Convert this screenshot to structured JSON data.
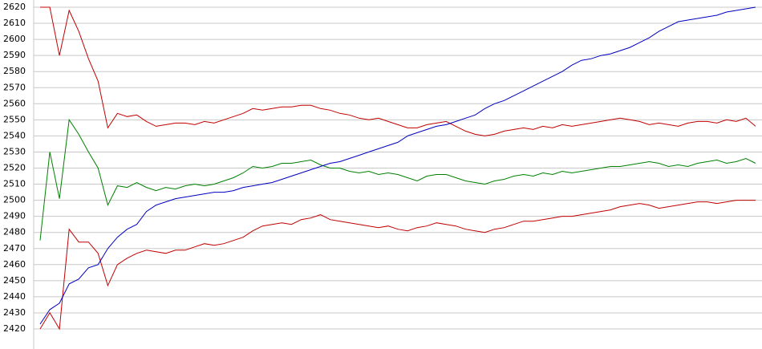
{
  "chart_data": {
    "type": "line",
    "categories": [
      null,
      null,
      null,
      null,
      null,
      null,
      null,
      null,
      null,
      null,
      null,
      null,
      null,
      null,
      null,
      null,
      null,
      null,
      null,
      null,
      null,
      null,
      null,
      null,
      null,
      null,
      null,
      null,
      null,
      null,
      null,
      null,
      null,
      null,
      null,
      null,
      null,
      null,
      null,
      null,
      null,
      null,
      null,
      null,
      null,
      null,
      null,
      null,
      null,
      null,
      null,
      null,
      null,
      null,
      null,
      null,
      null,
      null,
      null,
      null,
      null,
      null,
      null,
      null,
      null,
      null,
      null,
      null,
      null,
      null,
      null,
      null,
      null,
      null,
      null
    ],
    "series": [
      {
        "color": "#c00000",
        "values": [
          2620,
          2620,
          2590,
          2618,
          2605,
          2588,
          2574,
          2545,
          2554,
          2552,
          2553,
          2549,
          2546,
          2547,
          2548,
          2548,
          2547,
          2549,
          2548,
          2550,
          2552,
          2554,
          2557,
          2556,
          2557,
          2558,
          2558,
          2559,
          2559,
          2557,
          2556,
          2554,
          2553,
          2551,
          2550,
          2551,
          2549,
          2547,
          2545,
          2545,
          2547,
          2548,
          2549,
          2546,
          2543,
          2541,
          2540,
          2541,
          2543,
          2544,
          2545,
          2544,
          2546,
          2545,
          2547,
          2546,
          2547,
          2548,
          2549,
          2550,
          2551,
          2550,
          2549,
          2547,
          2548,
          2547,
          2546,
          2548,
          2549,
          2549,
          2548,
          2550,
          2549,
          2551,
          2546
        ]
      },
      {
        "color": "#008000",
        "values": [
          2475,
          2530,
          2501,
          2550,
          2541,
          2530,
          2520,
          2497,
          2509,
          2508,
          2511,
          2508,
          2506,
          2508,
          2507,
          2509,
          2510,
          2509,
          2510,
          2512,
          2514,
          2517,
          2521,
          2520,
          2521,
          2523,
          2523,
          2524,
          2525,
          2522,
          2520,
          2520,
          2518,
          2517,
          2518,
          2516,
          2517,
          2516,
          2514,
          2512,
          2515,
          2516,
          2516,
          2514,
          2512,
          2511,
          2510,
          2512,
          2513,
          2515,
          2516,
          2515,
          2517,
          2516,
          2518,
          2517,
          2518,
          2519,
          2520,
          2521,
          2521,
          2522,
          2523,
          2524,
          2523,
          2521,
          2522,
          2521,
          2523,
          2524,
          2525,
          2523,
          2524,
          2526,
          2523
        ]
      },
      {
        "color": "#c00000",
        "values": [
          2420,
          2430,
          2420,
          2482,
          2474,
          2474,
          2467,
          2447,
          2460,
          2464,
          2467,
          2469,
          2468,
          2467,
          2469,
          2469,
          2471,
          2473,
          2472,
          2473,
          2475,
          2477,
          2481,
          2484,
          2485,
          2486,
          2485,
          2488,
          2489,
          2491,
          2488,
          2487,
          2486,
          2485,
          2484,
          2483,
          2484,
          2482,
          2481,
          2483,
          2484,
          2486,
          2485,
          2484,
          2482,
          2481,
          2480,
          2482,
          2483,
          2485,
          2487,
          2487,
          2488,
          2489,
          2490,
          2490,
          2491,
          2492,
          2493,
          2494,
          2496,
          2497,
          2498,
          2497,
          2495,
          2496,
          2497,
          2498,
          2499,
          2499,
          2498,
          2499,
          2500,
          2500,
          2500
        ]
      },
      {
        "color": "#0000c0",
        "values": [
          2423,
          2432,
          2436,
          2448,
          2451,
          2458,
          2460,
          2470,
          2477,
          2482,
          2485,
          2493,
          2497,
          2499,
          2501,
          2502,
          2503,
          2504,
          2505,
          2505,
          2506,
          2508,
          2509,
          2510,
          2511,
          2513,
          2515,
          2517,
          2519,
          2521,
          2523,
          2524,
          2526,
          2528,
          2530,
          2532,
          2534,
          2536,
          2540,
          2542,
          2544,
          2546,
          2547,
          2549,
          2551,
          2553,
          2557,
          2560,
          2562,
          2565,
          2568,
          2571,
          2574,
          2577,
          2580,
          2584,
          2587,
          2588,
          2590,
          2591,
          2593,
          2595,
          2598,
          2601,
          2605,
          2608,
          2611,
          2612,
          2613,
          2614,
          2615,
          2617,
          2618,
          2619,
          2620
        ]
      }
    ],
    "ylim": [
      2420,
      2620
    ],
    "yticks": [
      2420,
      2430,
      2440,
      2450,
      2460,
      2470,
      2480,
      2490,
      2500,
      2510,
      2520,
      2530,
      2540,
      2550,
      2560,
      2570,
      2580,
      2590,
      2600,
      2610,
      2620
    ],
    "grid": true
  }
}
